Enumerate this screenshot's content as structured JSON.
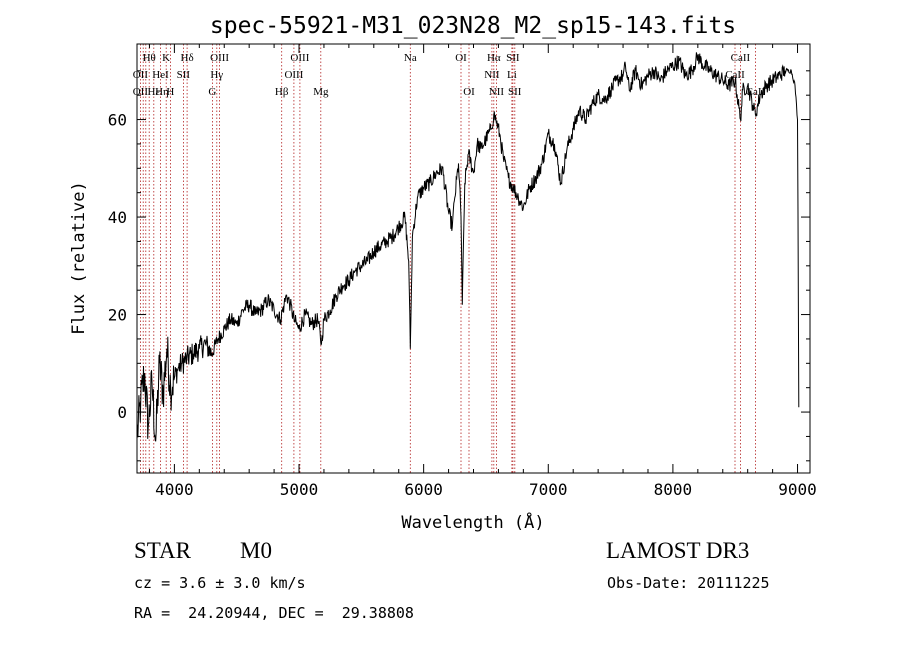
{
  "chart_data": {
    "type": "line",
    "title": "spec-55921-M31_023N28_M2_sp15-143.fits",
    "xlabel": "Wavelength (Å)",
    "ylabel": "Flux (relative)",
    "xlim": [
      3700,
      9100
    ],
    "ylim": [
      -12.5,
      75.5
    ],
    "x_ticks": [
      4000,
      5000,
      6000,
      7000,
      8000,
      9000
    ],
    "y_ticks": [
      0,
      20,
      40,
      60
    ],
    "x_tick_labels": [
      "4000",
      "5000",
      "6000",
      "7000",
      "8000",
      "9000"
    ],
    "y_tick_labels": [
      "0",
      "20",
      "40",
      "60"
    ],
    "series": [
      {
        "name": "flux",
        "x": [
          3700,
          3730,
          3760,
          3790,
          3820,
          3850,
          3880,
          3910,
          3940,
          3970,
          4000,
          4030,
          4060,
          4100,
          4150,
          4200,
          4250,
          4300,
          4350,
          4400,
          4450,
          4500,
          4550,
          4600,
          4650,
          4700,
          4750,
          4800,
          4850,
          4880,
          4900,
          4930,
          4960,
          5000,
          5050,
          5100,
          5150,
          5180,
          5200,
          5250,
          5300,
          5350,
          5400,
          5450,
          5500,
          5550,
          5600,
          5650,
          5700,
          5750,
          5800,
          5850,
          5880,
          5893,
          5910,
          5950,
          6000,
          6050,
          6100,
          6150,
          6200,
          6230,
          6250,
          6280,
          6300,
          6310,
          6330,
          6360,
          6400,
          6430,
          6460,
          6500,
          6540,
          6563,
          6580,
          6610,
          6640,
          6680,
          6720,
          6760,
          6800,
          6850,
          6900,
          6950,
          7000,
          7050,
          7100,
          7150,
          7200,
          7250,
          7300,
          7350,
          7400,
          7450,
          7500,
          7550,
          7600,
          7620,
          7650,
          7700,
          7750,
          7800,
          7850,
          7900,
          7950,
          8000,
          8050,
          8100,
          8150,
          8200,
          8250,
          8300,
          8350,
          8400,
          8450,
          8500,
          8542,
          8560,
          8600,
          8640,
          8662,
          8700,
          8750,
          8800,
          8850,
          8900,
          8950,
          8980,
          9000,
          9010
        ],
        "y": [
          -5,
          2,
          8,
          -3,
          6,
          -6,
          10,
          4,
          13,
          5,
          7,
          9,
          10,
          11,
          12,
          13,
          14,
          12,
          15,
          17,
          19,
          18,
          21,
          22,
          20,
          21,
          23,
          21,
          19,
          22,
          24,
          22,
          19,
          17,
          20,
          18,
          19,
          14,
          19,
          21,
          24,
          26,
          27,
          29,
          30,
          31,
          33,
          34,
          35,
          36,
          38,
          40,
          31,
          13,
          36,
          44,
          46,
          47,
          49,
          50,
          41,
          38,
          44,
          51,
          40,
          22,
          47,
          53,
          49,
          55,
          54,
          56,
          58,
          61,
          60,
          57,
          52,
          48,
          46,
          44,
          42,
          46,
          48,
          51,
          57,
          55,
          47,
          54,
          58,
          62,
          60,
          63,
          65,
          64,
          66,
          68,
          69,
          71,
          66,
          70,
          67,
          69,
          70,
          68,
          70,
          71,
          72,
          69,
          70,
          73,
          71,
          70,
          69,
          68,
          67,
          68,
          60,
          66,
          67,
          63,
          61,
          65,
          67,
          68,
          69,
          70,
          70,
          67,
          60,
          1
        ]
      }
    ],
    "line_labels": [
      {
        "label": "Hθ",
        "x": 3798,
        "tier": 1
      },
      {
        "label": "K",
        "x": 3934,
        "tier": 1
      },
      {
        "label": "Hδ",
        "x": 4102,
        "tier": 1
      },
      {
        "label": "OIII",
        "x": 4363,
        "tier": 1
      },
      {
        "label": "OIII",
        "x": 5007,
        "tier": 1
      },
      {
        "label": "OI",
        "x": 6300,
        "tier": 1
      },
      {
        "label": "Hα",
        "x": 6563,
        "tier": 1
      },
      {
        "label": "SII",
        "x": 6716,
        "tier": 1
      },
      {
        "label": "CaII",
        "x": 8542,
        "tier": 1
      },
      {
        "label": "OII",
        "x": 3727,
        "tier": 2
      },
      {
        "label": "HeI",
        "x": 3889,
        "tier": 2
      },
      {
        "label": "SII",
        "x": 4072,
        "tier": 2
      },
      {
        "label": "Hγ",
        "x": 4340,
        "tier": 2
      },
      {
        "label": "OIII",
        "x": 4959,
        "tier": 2
      },
      {
        "label": "NII",
        "x": 6548,
        "tier": 2
      },
      {
        "label": "Li",
        "x": 6708,
        "tier": 2
      },
      {
        "label": "CaII",
        "x": 8498,
        "tier": 2
      },
      {
        "label": "OII",
        "x": 3727,
        "tier": 3
      },
      {
        "label": "Hε",
        "x": 3835,
        "tier": 3
      },
      {
        "label": "Hη",
        "x": 3900,
        "tier": 3
      },
      {
        "label": "H",
        "x": 3968,
        "tier": 3
      },
      {
        "label": "G",
        "x": 4305,
        "tier": 3
      },
      {
        "label": "Hβ",
        "x": 4861,
        "tier": 3
      },
      {
        "label": "Mg",
        "x": 5175,
        "tier": 3
      },
      {
        "label": "Na",
        "x": 5893,
        "tier": 1
      },
      {
        "label": "OI",
        "x": 6364,
        "tier": 3
      },
      {
        "label": "NII",
        "x": 6584,
        "tier": 3
      },
      {
        "label": "SII",
        "x": 6731,
        "tier": 3
      },
      {
        "label": "CaII",
        "x": 8662,
        "tier": 3
      }
    ],
    "line_markers": [
      3727,
      3750,
      3771,
      3798,
      3835,
      3889,
      3934,
      3968,
      4072,
      4102,
      4305,
      4340,
      4363,
      4861,
      4959,
      5007,
      5175,
      5893,
      6300,
      6364,
      6548,
      6563,
      6584,
      6708,
      6716,
      6731,
      8498,
      8542,
      8662
    ]
  },
  "info": {
    "class_label": "STAR",
    "subclass_label": "M0",
    "survey": "LAMOST DR3",
    "redshift": "cz = 3.6 ± 3.0 km/s",
    "obs_date": "Obs-Date: 20111225",
    "coords": "RA =  24.20944, DEC =  29.38808"
  },
  "colors": {
    "spectrum": "#000000",
    "marker_lines": "#b22222",
    "axes": "#000000"
  }
}
